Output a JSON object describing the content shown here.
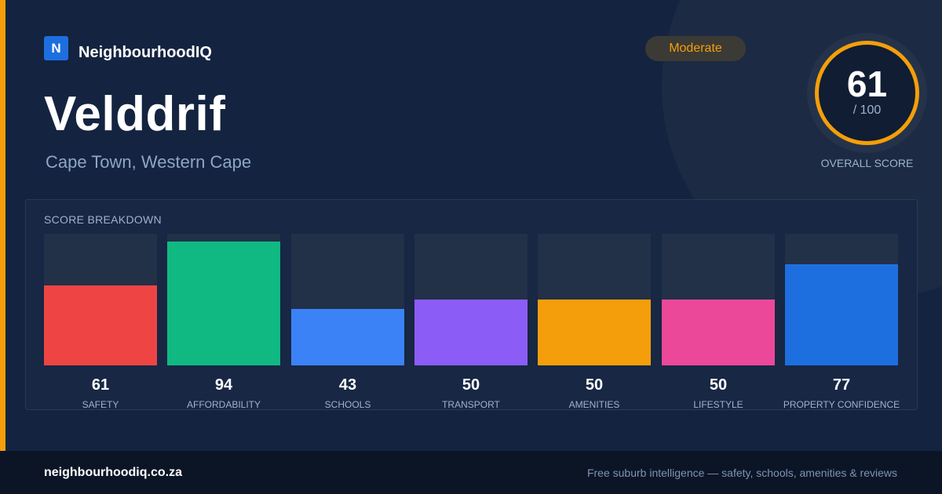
{
  "brand": {
    "logo_letter": "N",
    "name": "NeighbourhoodIQ",
    "color": "#1d6fe0"
  },
  "location": {
    "suburb": "Velddrif",
    "region": "Cape Town, Western Cape"
  },
  "rating": {
    "label": "Moderate",
    "color": "#f59e0b"
  },
  "overall": {
    "score": "61",
    "max": "/ 100",
    "label": "OVERALL SCORE"
  },
  "breakdown": {
    "title": "SCORE BREAKDOWN",
    "items": [
      {
        "label": "SAFETY",
        "value": "61",
        "color": "#ef4444"
      },
      {
        "label": "AFFORDABILITY",
        "value": "94",
        "color": "#10b981"
      },
      {
        "label": "SCHOOLS",
        "value": "43",
        "color": "#3b82f6"
      },
      {
        "label": "TRANSPORT",
        "value": "50",
        "color": "#8b5cf6"
      },
      {
        "label": "AMENITIES",
        "value": "50",
        "color": "#f59e0b"
      },
      {
        "label": "LIFESTYLE",
        "value": "50",
        "color": "#ec4899"
      },
      {
        "label": "PROPERTY CONFIDENCE",
        "value": "77",
        "color": "#1d6fe0"
      }
    ]
  },
  "footer": {
    "url": "neighbourhoodiq.co.za",
    "tagline": "Free suburb intelligence — safety, schools, amenities & reviews"
  }
}
